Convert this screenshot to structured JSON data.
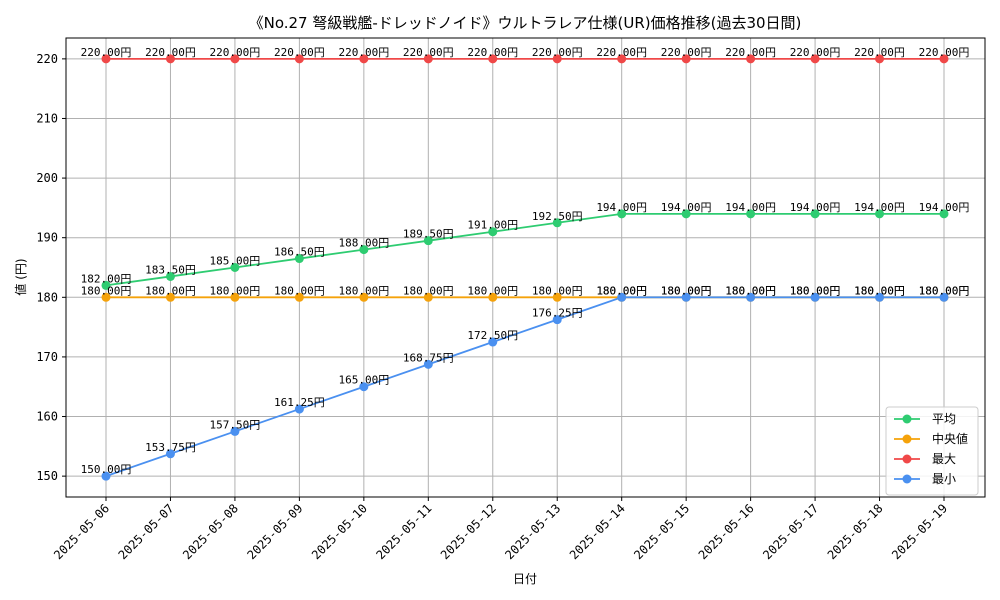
{
  "chart_data": {
    "type": "line",
    "title": "《No.27 弩級戦艦-ドレッドノイド》ウルトラレア仕様(UR)価格推移(過去30日間)",
    "xlabel": "日付",
    "ylabel": "値 (円)",
    "x": [
      "2025-05-06",
      "2025-05-07",
      "2025-05-08",
      "2025-05-09",
      "2025-05-10",
      "2025-05-11",
      "2025-05-12",
      "2025-05-13",
      "2025-05-14",
      "2025-05-15",
      "2025-05-16",
      "2025-05-17",
      "2025-05-18",
      "2025-05-19"
    ],
    "ylim": [
      146.5,
      223.5
    ],
    "yticks": [
      150,
      160,
      170,
      180,
      190,
      200,
      210,
      220
    ],
    "grid": true,
    "legend_position": "lower-right",
    "value_suffix": "円",
    "series": [
      {
        "name": "平均",
        "color": "#2ecc71",
        "values": [
          182,
          183.5,
          185,
          186.5,
          188,
          189.5,
          191,
          192.5,
          194,
          194,
          194,
          194,
          194,
          194
        ]
      },
      {
        "name": "中央値",
        "color": "#f5a20a",
        "values": [
          180,
          180,
          180,
          180,
          180,
          180,
          180,
          180,
          180,
          180,
          180,
          180,
          180,
          180
        ]
      },
      {
        "name": "最大",
        "color": "#f04848",
        "values": [
          220,
          220,
          220,
          220,
          220,
          220,
          220,
          220,
          220,
          220,
          220,
          220,
          220,
          220
        ]
      },
      {
        "name": "最小",
        "color": "#4a90f0",
        "values": [
          150,
          153.75,
          157.5,
          161.25,
          165,
          168.75,
          172.5,
          176.25,
          180,
          180,
          180,
          180,
          180,
          180
        ]
      }
    ]
  }
}
